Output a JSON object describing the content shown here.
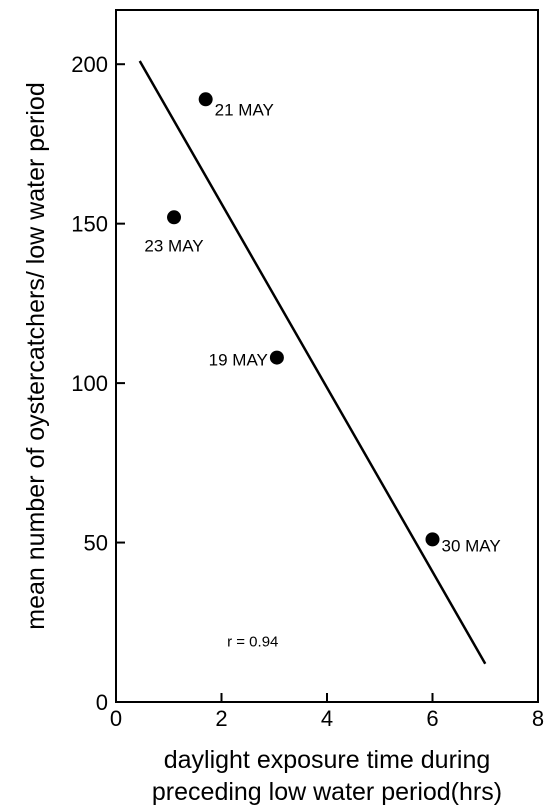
{
  "chart_data": {
    "type": "scatter",
    "title": "",
    "xlabel_lines": [
      "daylight exposure time during",
      "preceding low water period(hrs)"
    ],
    "ylabel": "mean number of oystercatchers/ low water period",
    "xlim": [
      0,
      8
    ],
    "ylim": [
      0,
      217
    ],
    "x_ticks": [
      0,
      2,
      4,
      6,
      8
    ],
    "y_ticks": [
      0,
      50,
      100,
      150,
      200
    ],
    "x_tick_labels": [
      "0",
      "2",
      "4",
      "6",
      "8"
    ],
    "y_tick_labels": [
      "0",
      "50",
      "100",
      "150",
      "200"
    ],
    "grid": false,
    "points": [
      {
        "label": "21 MAY",
        "x": 1.7,
        "y": 189
      },
      {
        "label": "23 MAY",
        "x": 1.1,
        "y": 152
      },
      {
        "label": "19 MAY",
        "x": 3.05,
        "y": 108
      },
      {
        "label": "30 MAY",
        "x": 6.0,
        "y": 51
      }
    ],
    "regression_line": {
      "x": [
        0.45,
        7.0
      ],
      "y": [
        201,
        12
      ]
    },
    "annotation": "r = 0.94",
    "annotation_position": {
      "x": 1.0,
      "y": 19
    },
    "color": "#000000"
  }
}
